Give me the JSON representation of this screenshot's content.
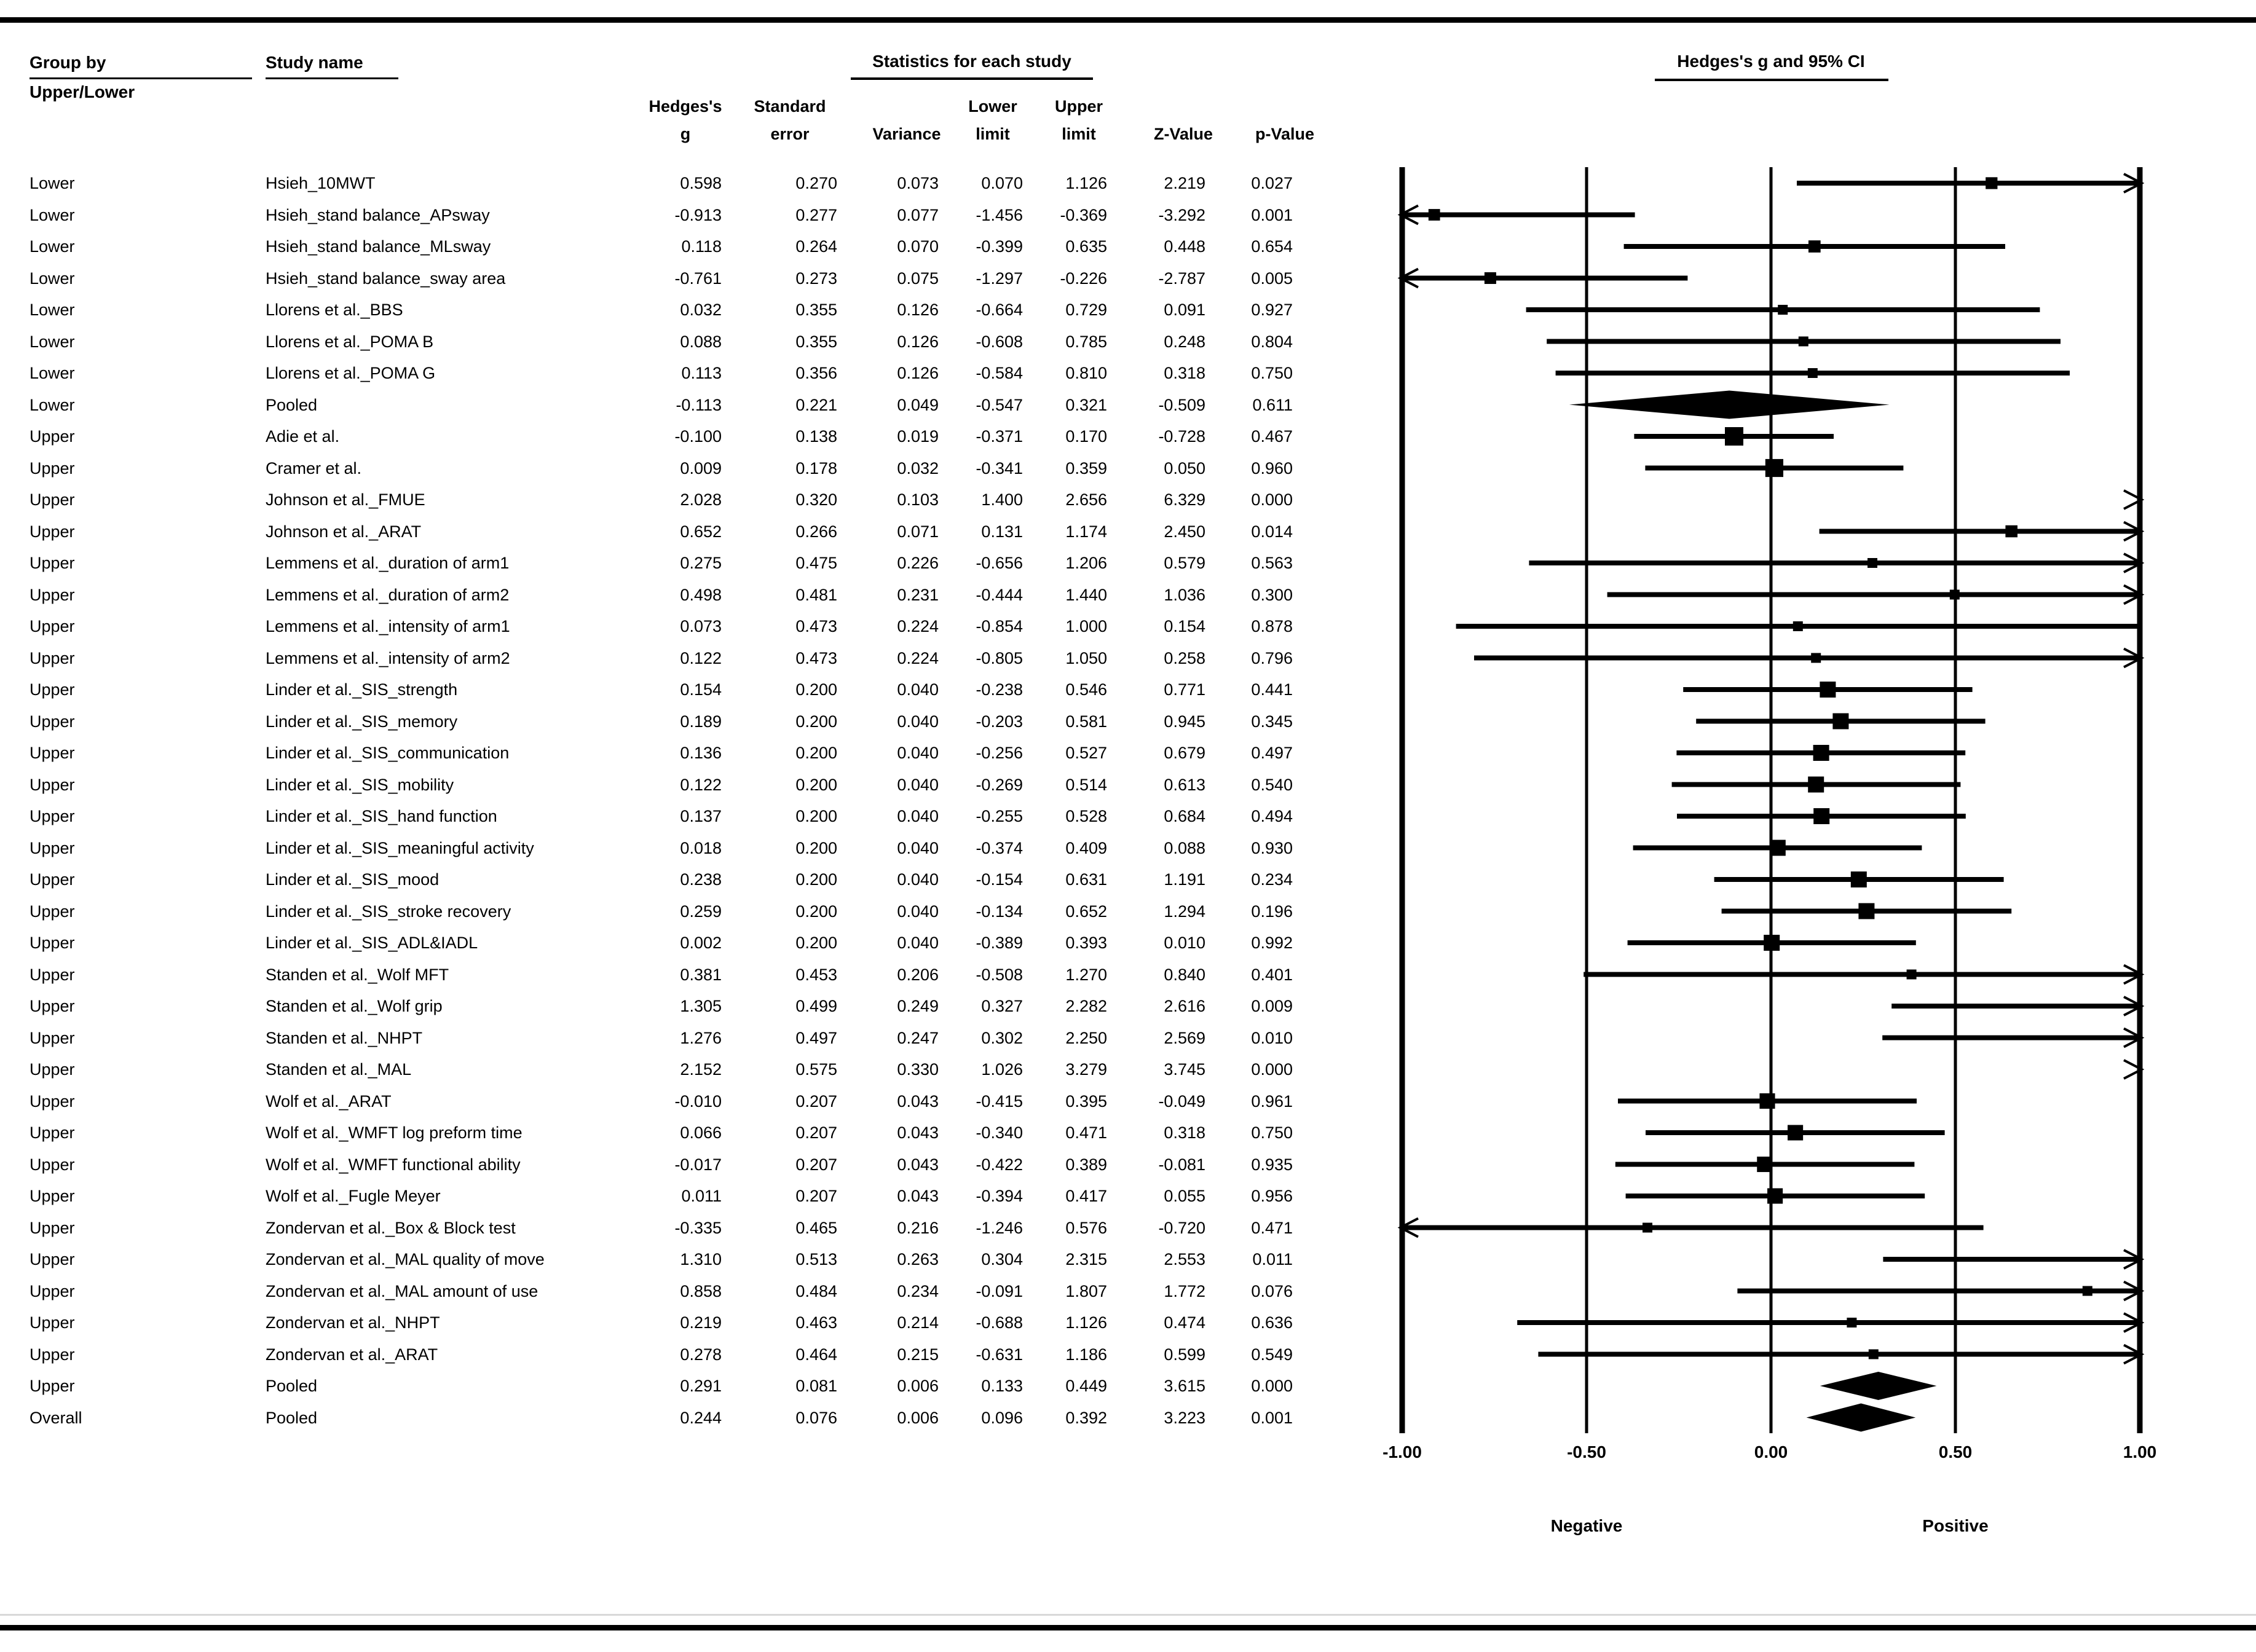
{
  "page": {
    "group_by_label": "Group by",
    "group_by_value": "Upper/Lower",
    "study_name_label": "Study name",
    "stats_header": "Statistics for each study",
    "plot_header": "Hedges's g and 95% CI",
    "negative_label": "Negative",
    "positive_label": "Positive"
  },
  "columns": {
    "line1": [
      "Hedges's",
      "Standard",
      "",
      "Lower",
      "Upper",
      "",
      ""
    ],
    "line2": [
      "g",
      "error",
      "Variance",
      "limit",
      "limit",
      "Z-Value",
      "p-Value"
    ]
  },
  "chart_data": {
    "type": "forest",
    "title": "Hedges's g and 95% CI",
    "x_axis": {
      "xlim": [
        -1,
        1
      ],
      "ticks": [
        {
          "v": -1.0,
          "label": "-1.00"
        },
        {
          "v": -0.5,
          "label": "-0.50"
        },
        {
          "v": 0.0,
          "label": "0.00"
        },
        {
          "v": 0.5,
          "label": "0.50"
        },
        {
          "v": 1.0,
          "label": "1.00"
        }
      ],
      "negative_label": "Negative",
      "positive_label": "Positive"
    },
    "rows": [
      {
        "group": "Lower",
        "study": "Hsieh_10MWT",
        "g": "0.598",
        "se": "0.270",
        "variance": "0.073",
        "lower": "0.070",
        "upper": "1.126",
        "z": "2.219",
        "p": "0.027",
        "marker": "box"
      },
      {
        "group": "Lower",
        "study": "Hsieh_stand balance_APsway",
        "g": "-0.913",
        "se": "0.277",
        "variance": "0.077",
        "lower": "-1.456",
        "upper": "-0.369",
        "z": "-3.292",
        "p": "0.001",
        "marker": "box"
      },
      {
        "group": "Lower",
        "study": "Hsieh_stand balance_MLsway",
        "g": "0.118",
        "se": "0.264",
        "variance": "0.070",
        "lower": "-0.399",
        "upper": "0.635",
        "z": "0.448",
        "p": "0.654",
        "marker": "box"
      },
      {
        "group": "Lower",
        "study": "Hsieh_stand balance_sway area",
        "g": "-0.761",
        "se": "0.273",
        "variance": "0.075",
        "lower": "-1.297",
        "upper": "-0.226",
        "z": "-2.787",
        "p": "0.005",
        "marker": "box"
      },
      {
        "group": "Lower",
        "study": "Llorens et al._BBS",
        "g": "0.032",
        "se": "0.355",
        "variance": "0.126",
        "lower": "-0.664",
        "upper": "0.729",
        "z": "0.091",
        "p": "0.927",
        "marker": "box"
      },
      {
        "group": "Lower",
        "study": "Llorens et al._POMA B",
        "g": "0.088",
        "se": "0.355",
        "variance": "0.126",
        "lower": "-0.608",
        "upper": "0.785",
        "z": "0.248",
        "p": "0.804",
        "marker": "box"
      },
      {
        "group": "Lower",
        "study": "Llorens et al._POMA G",
        "g": "0.113",
        "se": "0.356",
        "variance": "0.126",
        "lower": "-0.584",
        "upper": "0.810",
        "z": "0.318",
        "p": "0.750",
        "marker": "box"
      },
      {
        "group": "Lower",
        "study": "Pooled",
        "g": "-0.113",
        "se": "0.221",
        "variance": "0.049",
        "lower": "-0.547",
        "upper": "0.321",
        "z": "-0.509",
        "p": "0.611",
        "marker": "diamond"
      },
      {
        "group": "Upper",
        "study": "Adie et al.",
        "g": "-0.100",
        "se": "0.138",
        "variance": "0.019",
        "lower": "-0.371",
        "upper": "0.170",
        "z": "-0.728",
        "p": "0.467",
        "marker": "box"
      },
      {
        "group": "Upper",
        "study": "Cramer et al.",
        "g": "0.009",
        "se": "0.178",
        "variance": "0.032",
        "lower": "-0.341",
        "upper": "0.359",
        "z": "0.050",
        "p": "0.960",
        "marker": "box"
      },
      {
        "group": "Upper",
        "study": "Johnson et al._FMUE",
        "g": "2.028",
        "se": "0.320",
        "variance": "0.103",
        "lower": "1.400",
        "upper": "2.656",
        "z": "6.329",
        "p": "0.000",
        "marker": "box"
      },
      {
        "group": "Upper",
        "study": "Johnson et al._ARAT",
        "g": "0.652",
        "se": "0.266",
        "variance": "0.071",
        "lower": "0.131",
        "upper": "1.174",
        "z": "2.450",
        "p": "0.014",
        "marker": "box"
      },
      {
        "group": "Upper",
        "study": "Lemmens et al._duration of arm1",
        "g": "0.275",
        "se": "0.475",
        "variance": "0.226",
        "lower": "-0.656",
        "upper": "1.206",
        "z": "0.579",
        "p": "0.563",
        "marker": "box"
      },
      {
        "group": "Upper",
        "study": "Lemmens et al._duration of arm2",
        "g": "0.498",
        "se": "0.481",
        "variance": "0.231",
        "lower": "-0.444",
        "upper": "1.440",
        "z": "1.036",
        "p": "0.300",
        "marker": "box"
      },
      {
        "group": "Upper",
        "study": "Lemmens et al._intensity of arm1",
        "g": "0.073",
        "se": "0.473",
        "variance": "0.224",
        "lower": "-0.854",
        "upper": "1.000",
        "z": "0.154",
        "p": "0.878",
        "marker": "box"
      },
      {
        "group": "Upper",
        "study": "Lemmens et al._intensity of arm2",
        "g": "0.122",
        "se": "0.473",
        "variance": "0.224",
        "lower": "-0.805",
        "upper": "1.050",
        "z": "0.258",
        "p": "0.796",
        "marker": "box"
      },
      {
        "group": "Upper",
        "study": "Linder et al._SIS_strength",
        "g": "0.154",
        "se": "0.200",
        "variance": "0.040",
        "lower": "-0.238",
        "upper": "0.546",
        "z": "0.771",
        "p": "0.441",
        "marker": "box"
      },
      {
        "group": "Upper",
        "study": "Linder et al._SIS_memory",
        "g": "0.189",
        "se": "0.200",
        "variance": "0.040",
        "lower": "-0.203",
        "upper": "0.581",
        "z": "0.945",
        "p": "0.345",
        "marker": "box"
      },
      {
        "group": "Upper",
        "study": "Linder et al._SIS_communication",
        "g": "0.136",
        "se": "0.200",
        "variance": "0.040",
        "lower": "-0.256",
        "upper": "0.527",
        "z": "0.679",
        "p": "0.497",
        "marker": "box"
      },
      {
        "group": "Upper",
        "study": "Linder et al._SIS_mobility",
        "g": "0.122",
        "se": "0.200",
        "variance": "0.040",
        "lower": "-0.269",
        "upper": "0.514",
        "z": "0.613",
        "p": "0.540",
        "marker": "box"
      },
      {
        "group": "Upper",
        "study": "Linder et al._SIS_hand function",
        "g": "0.137",
        "se": "0.200",
        "variance": "0.040",
        "lower": "-0.255",
        "upper": "0.528",
        "z": "0.684",
        "p": "0.494",
        "marker": "box"
      },
      {
        "group": "Upper",
        "study": "Linder et al._SIS_meaningful activity",
        "g": "0.018",
        "se": "0.200",
        "variance": "0.040",
        "lower": "-0.374",
        "upper": "0.409",
        "z": "0.088",
        "p": "0.930",
        "marker": "box"
      },
      {
        "group": "Upper",
        "study": "Linder et al._SIS_mood",
        "g": "0.238",
        "se": "0.200",
        "variance": "0.040",
        "lower": "-0.154",
        "upper": "0.631",
        "z": "1.191",
        "p": "0.234",
        "marker": "box"
      },
      {
        "group": "Upper",
        "study": "Linder et al._SIS_stroke recovery",
        "g": "0.259",
        "se": "0.200",
        "variance": "0.040",
        "lower": "-0.134",
        "upper": "0.652",
        "z": "1.294",
        "p": "0.196",
        "marker": "box"
      },
      {
        "group": "Upper",
        "study": "Linder et al._SIS_ADL&IADL",
        "g": "0.002",
        "se": "0.200",
        "variance": "0.040",
        "lower": "-0.389",
        "upper": "0.393",
        "z": "0.010",
        "p": "0.992",
        "marker": "box"
      },
      {
        "group": "Upper",
        "study": "Standen et al._Wolf MFT",
        "g": "0.381",
        "se": "0.453",
        "variance": "0.206",
        "lower": "-0.508",
        "upper": "1.270",
        "z": "0.840",
        "p": "0.401",
        "marker": "box"
      },
      {
        "group": "Upper",
        "study": "Standen et al._Wolf grip",
        "g": "1.305",
        "se": "0.499",
        "variance": "0.249",
        "lower": "0.327",
        "upper": "2.282",
        "z": "2.616",
        "p": "0.009",
        "marker": "box"
      },
      {
        "group": "Upper",
        "study": "Standen et al._NHPT",
        "g": "1.276",
        "se": "0.497",
        "variance": "0.247",
        "lower": "0.302",
        "upper": "2.250",
        "z": "2.569",
        "p": "0.010",
        "marker": "box"
      },
      {
        "group": "Upper",
        "study": "Standen et al._MAL",
        "g": "2.152",
        "se": "0.575",
        "variance": "0.330",
        "lower": "1.026",
        "upper": "3.279",
        "z": "3.745",
        "p": "0.000",
        "marker": "box"
      },
      {
        "group": "Upper",
        "study": "Wolf et al._ARAT",
        "g": "-0.010",
        "se": "0.207",
        "variance": "0.043",
        "lower": "-0.415",
        "upper": "0.395",
        "z": "-0.049",
        "p": "0.961",
        "marker": "box"
      },
      {
        "group": "Upper",
        "study": "Wolf et al._WMFT log preform time",
        "g": "0.066",
        "se": "0.207",
        "variance": "0.043",
        "lower": "-0.340",
        "upper": "0.471",
        "z": "0.318",
        "p": "0.750",
        "marker": "box"
      },
      {
        "group": "Upper",
        "study": "Wolf et al._WMFT functional ability",
        "g": "-0.017",
        "se": "0.207",
        "variance": "0.043",
        "lower": "-0.422",
        "upper": "0.389",
        "z": "-0.081",
        "p": "0.935",
        "marker": "box"
      },
      {
        "group": "Upper",
        "study": "Wolf et al._Fugle Meyer",
        "g": "0.011",
        "se": "0.207",
        "variance": "0.043",
        "lower": "-0.394",
        "upper": "0.417",
        "z": "0.055",
        "p": "0.956",
        "marker": "box"
      },
      {
        "group": "Upper",
        "study": "Zondervan et al._Box & Block test",
        "g": "-0.335",
        "se": "0.465",
        "variance": "0.216",
        "lower": "-1.246",
        "upper": "0.576",
        "z": "-0.720",
        "p": "0.471",
        "marker": "box"
      },
      {
        "group": "Upper",
        "study": "Zondervan et al._MAL quality of move",
        "g": "1.310",
        "se": "0.513",
        "variance": "0.263",
        "lower": "0.304",
        "upper": "2.315",
        "z": "2.553",
        "p": "0.011",
        "marker": "box"
      },
      {
        "group": "Upper",
        "study": "Zondervan et al._MAL amount of use",
        "g": "0.858",
        "se": "0.484",
        "variance": "0.234",
        "lower": "-0.091",
        "upper": "1.807",
        "z": "1.772",
        "p": "0.076",
        "marker": "box"
      },
      {
        "group": "Upper",
        "study": "Zondervan et al._NHPT",
        "g": "0.219",
        "se": "0.463",
        "variance": "0.214",
        "lower": "-0.688",
        "upper": "1.126",
        "z": "0.474",
        "p": "0.636",
        "marker": "box"
      },
      {
        "group": "Upper",
        "study": "Zondervan et al._ARAT",
        "g": "0.278",
        "se": "0.464",
        "variance": "0.215",
        "lower": "-0.631",
        "upper": "1.186",
        "z": "0.599",
        "p": "0.549",
        "marker": "box"
      },
      {
        "group": "Upper",
        "study": "Pooled",
        "g": "0.291",
        "se": "0.081",
        "variance": "0.006",
        "lower": "0.133",
        "upper": "0.449",
        "z": "3.615",
        "p": "0.000",
        "marker": "diamond"
      },
      {
        "group": "Overall",
        "study": "Pooled",
        "g": "0.244",
        "se": "0.076",
        "variance": "0.006",
        "lower": "0.096",
        "upper": "0.392",
        "z": "3.223",
        "p": "0.001",
        "marker": "diamond"
      }
    ]
  }
}
